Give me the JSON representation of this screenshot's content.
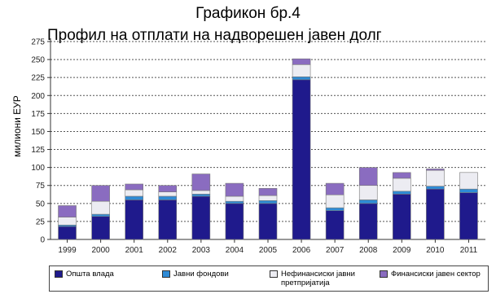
{
  "chart_data": {
    "type": "bar",
    "stacked": true,
    "title": "Графикон бр.4",
    "subtitle": "Профил на отплати на надворешен јавен долг",
    "ylabel": "милиони ЕУР",
    "xlabel": "",
    "ylim": [
      0,
      275
    ],
    "yticks": [
      0,
      25,
      50,
      75,
      100,
      125,
      150,
      175,
      200,
      225,
      250,
      275
    ],
    "grid": true,
    "legend_position": "bottom",
    "categories": [
      "1999",
      "2000",
      "2001",
      "2002",
      "2003",
      "2004",
      "2005",
      "2006",
      "2007",
      "2008",
      "2009",
      "2010",
      "2011"
    ],
    "series": [
      {
        "name": "Општа влада",
        "color": "#1f1a8c",
        "values": [
          18,
          32,
          55,
          55,
          60,
          50,
          50,
          222,
          40,
          50,
          63,
          70,
          65
        ]
      },
      {
        "name": "Јавни фондови",
        "color": "#2e8bd6",
        "values": [
          2,
          3,
          5,
          5,
          3,
          3,
          4,
          4,
          4,
          5,
          4,
          4,
          5
        ]
      },
      {
        "name": "Нефинансиски јавни претпријатија",
        "color": "#ececf2",
        "values": [
          11,
          18,
          9,
          6,
          5,
          7,
          7,
          17,
          18,
          20,
          18,
          22,
          23
        ]
      },
      {
        "name": "Финансиски јавен сектор",
        "color": "#8a6cc0",
        "values": [
          16,
          22,
          8,
          9,
          23,
          18,
          10,
          8,
          16,
          25,
          8,
          2,
          0
        ]
      }
    ]
  }
}
